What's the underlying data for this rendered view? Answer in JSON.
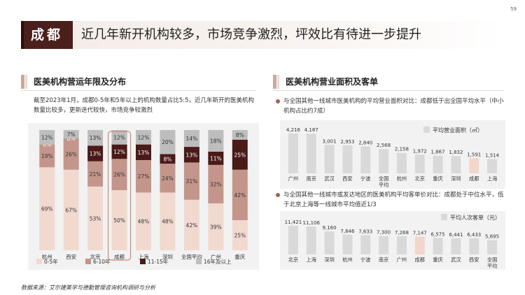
{
  "page_number": "59",
  "header": {
    "city": "成都",
    "headline": "近几年新开机构较多，市场竞争激烈，坪效比有待进一步提升"
  },
  "left": {
    "section_title": "医美机构营运年限及分布",
    "description": "截至2023年1月，成都0-5年和5年以上的机构数量占比5:5，近几年新开的医美机构数量比较多，更新迭代较快，市场竞争较激烈"
  },
  "right": {
    "section_title": "医美机构营业面积及客单",
    "bullet1": "与全国其他一线城市医美机构的平均营业面积对比：成都低于出全国平均水平（中小机构占比约7成）",
    "bullet2": "与全国其他一线城市或发达地区的医美机构平均客单价对比：成都处于中位水平，低于北京上海等一线城市平均值近1/3"
  },
  "source": "数据来源：艾尔建美学与德勤管理咨询机构调研与分析",
  "colors": {
    "seg_0_5": "#f2d9cf",
    "seg_6_10": "#c4958a",
    "seg_11_15": "#4a1a18",
    "seg_16plus": "#bdbdbd",
    "bar_grey": "#d9d9d9",
    "bar_highlight": "#f2d6cc",
    "highlight_border": "#c98a7a"
  },
  "chart_data": [
    {
      "type": "bar",
      "stacked": true,
      "categories": [
        "杭州",
        "西安",
        "北京",
        "成都",
        "上海",
        "深圳",
        "全国平均",
        "广州",
        "重庆"
      ],
      "series": [
        {
          "name": "0-5年",
          "values": [
            69,
            67,
            53,
            50,
            48,
            48,
            42,
            39,
            25
          ]
        },
        {
          "name": "6-10年",
          "values": [
            19,
            26,
            21,
            26,
            27,
            24,
            31,
            32,
            42
          ]
        },
        {
          "name": "11-15年",
          "values": [
            0,
            0,
            13,
            12,
            13,
            8,
            13,
            11,
            25
          ]
        },
        {
          "name": "16年及以上",
          "values": [
            12,
            7,
            13,
            12,
            12,
            20,
            14,
            18,
            8
          ]
        }
      ],
      "label_unit": "%",
      "highlight": "成都",
      "legend_position": "bottom",
      "ylim": [
        0,
        100
      ]
    },
    {
      "type": "bar",
      "categories": [
        "广州",
        "南京",
        "武汉",
        "西安",
        "宁波",
        "全国平均",
        "杭州",
        "北京",
        "重庆",
        "深圳",
        "成都",
        "上海"
      ],
      "values": [
        4216,
        4187,
        3001,
        2953,
        2840,
        2568,
        2158,
        1972,
        1867,
        1832,
        1591,
        1514
      ],
      "legend": "平均营业面积（㎡）",
      "highlight": "成都",
      "ylim": [
        0,
        4500
      ]
    },
    {
      "type": "bar",
      "categories": [
        "北京",
        "上海",
        "深圳",
        "杭州",
        "宁波",
        "南京",
        "广州",
        "成都",
        "重庆",
        "武汉",
        "西安",
        "全国平均"
      ],
      "values": [
        11421,
        11106,
        9160,
        7846,
        7633,
        7300,
        7268,
        7147,
        6575,
        6441,
        6433,
        5695
      ],
      "legend": "平均人次客单（元）",
      "highlight": "成都",
      "ylim": [
        0,
        12500
      ]
    }
  ]
}
